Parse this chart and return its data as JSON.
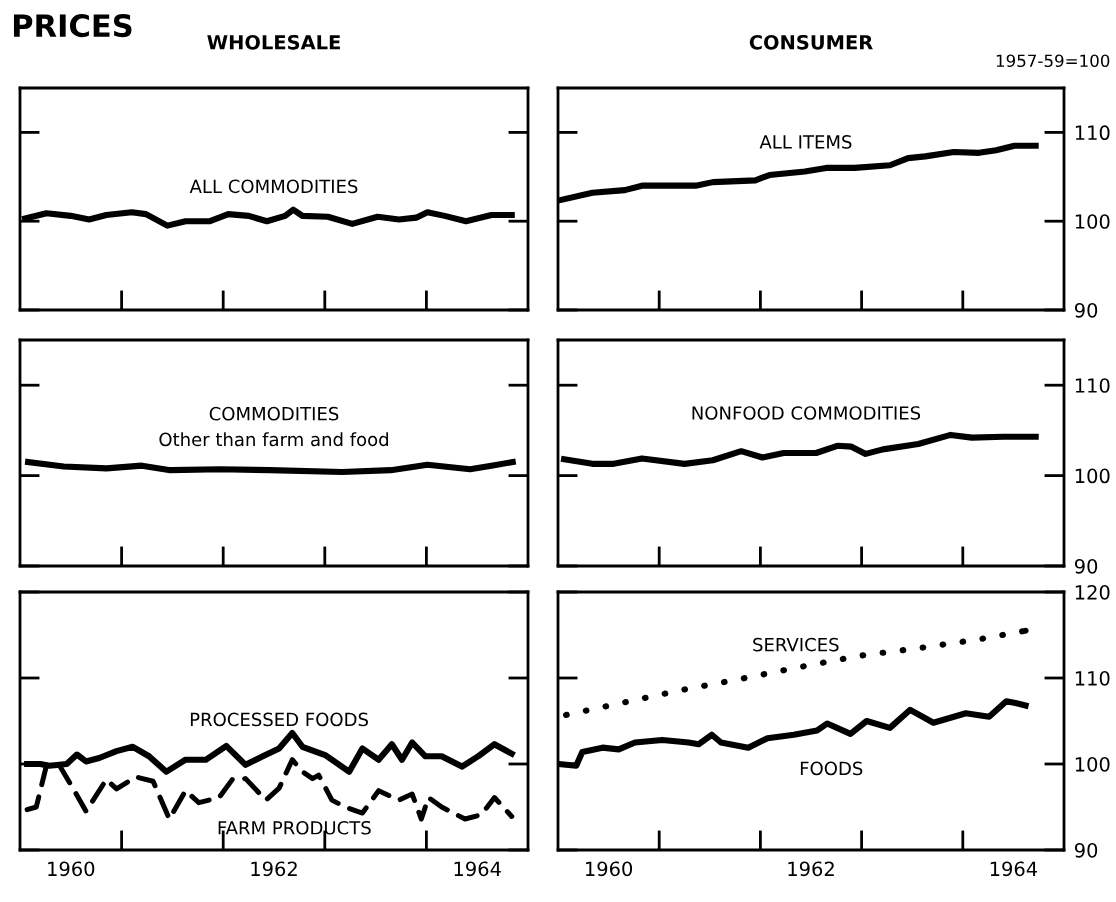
{
  "chart_data": [
    {
      "type": "line",
      "title": "WHOLESALE",
      "annotations": [
        "PRICES"
      ],
      "xlim": [
        1960,
        1965
      ],
      "ylim": [
        90,
        115
      ],
      "yticks": [
        90,
        100,
        110
      ],
      "tick_labels": false,
      "xticks": [
        {
          "value": 1961,
          "label": null
        },
        {
          "value": 1962,
          "label": null
        },
        {
          "value": 1963,
          "label": null
        },
        {
          "value": 1964,
          "label": null
        }
      ],
      "series": [
        {
          "name": "ALL COMMODITIES",
          "color": "#000000",
          "line_style": "solid",
          "x": [
            1960.05,
            1960.26,
            1960.5,
            1960.68,
            1960.85,
            1961.1,
            1961.24,
            1961.45,
            1961.63,
            1961.87,
            1962.05,
            1962.25,
            1962.43,
            1962.61,
            1962.69,
            1962.78,
            1963.03,
            1963.27,
            1963.52,
            1963.73,
            1963.9,
            1964.01,
            1964.18,
            1964.39,
            1964.64,
            1964.84
          ],
          "values": [
            100.3,
            100.9,
            100.6,
            100.2,
            100.7,
            101.0,
            100.8,
            99.5,
            100.0,
            100.0,
            100.8,
            100.6,
            100.0,
            100.6,
            101.3,
            100.6,
            100.5,
            99.7,
            100.5,
            100.2,
            100.4,
            101.0,
            100.6,
            100.0,
            100.7,
            100.7
          ]
        }
      ]
    },
    {
      "type": "line",
      "title": "CONSUMER",
      "annotations": [
        "1957-59=100"
      ],
      "xlim": [
        1960,
        1965
      ],
      "ylim": [
        90,
        115
      ],
      "yticks": [
        90,
        100,
        110
      ],
      "tick_labels": "y",
      "xticks": [
        {
          "value": 1961,
          "label": null
        },
        {
          "value": 1962,
          "label": null
        },
        {
          "value": 1963,
          "label": null
        },
        {
          "value": 1964,
          "label": null
        }
      ],
      "series": [
        {
          "name": "ALL ITEMS",
          "color": "#000000",
          "line_style": "solid",
          "x": [
            1960.03,
            1960.34,
            1960.66,
            1960.83,
            1961.36,
            1961.53,
            1961.95,
            1962.09,
            1962.44,
            1962.65,
            1962.93,
            1963.28,
            1963.46,
            1963.63,
            1963.91,
            1964.16,
            1964.33,
            1964.51,
            1964.72
          ],
          "values": [
            102.4,
            103.2,
            103.5,
            104.0,
            104.0,
            104.4,
            104.6,
            105.2,
            105.6,
            106.0,
            106.0,
            106.3,
            107.1,
            107.3,
            107.8,
            107.7,
            108.0,
            108.5,
            108.5
          ]
        }
      ]
    },
    {
      "type": "line",
      "xlim": [
        1960,
        1965
      ],
      "ylim": [
        90,
        115
      ],
      "yticks": [
        90,
        100,
        110
      ],
      "tick_labels": false,
      "xticks": [
        {
          "value": 1961,
          "label": null
        },
        {
          "value": 1962,
          "label": null
        },
        {
          "value": 1963,
          "label": null
        },
        {
          "value": 1964,
          "label": null
        }
      ],
      "series": [
        {
          "name": "COMMODITIES\nOther than farm and food",
          "color": "#000000",
          "line_style": "solid",
          "x": [
            1960.08,
            1960.43,
            1960.85,
            1961.2,
            1961.48,
            1961.97,
            1962.46,
            1963.17,
            1963.65,
            1964.01,
            1964.43,
            1964.64,
            1964.85
          ],
          "values": [
            101.5,
            101.0,
            100.8,
            101.1,
            100.6,
            100.7,
            100.6,
            100.4,
            100.6,
            101.2,
            100.7,
            101.1,
            101.5
          ]
        }
      ]
    },
    {
      "type": "line",
      "xlim": [
        1960,
        1965
      ],
      "ylim": [
        90,
        115
      ],
      "yticks": [
        90,
        100,
        110
      ],
      "tick_labels": "y",
      "xticks": [
        {
          "value": 1961,
          "label": null
        },
        {
          "value": 1962,
          "label": null
        },
        {
          "value": 1963,
          "label": null
        },
        {
          "value": 1964,
          "label": null
        }
      ],
      "series": [
        {
          "name": "NONFOOD COMMODITIES",
          "color": "#000000",
          "line_style": "solid",
          "x": [
            1960.06,
            1960.34,
            1960.55,
            1960.83,
            1961.25,
            1961.53,
            1961.81,
            1962.02,
            1962.23,
            1962.55,
            1962.76,
            1962.9,
            1963.04,
            1963.21,
            1963.56,
            1963.88,
            1964.09,
            1964.4,
            1964.72
          ],
          "values": [
            101.8,
            101.3,
            101.3,
            101.9,
            101.3,
            101.7,
            102.7,
            102.0,
            102.5,
            102.5,
            103.3,
            103.2,
            102.4,
            102.9,
            103.5,
            104.5,
            104.2,
            104.3,
            104.3
          ]
        }
      ]
    },
    {
      "type": "line",
      "xlim": [
        1960,
        1965
      ],
      "ylim": [
        90,
        120
      ],
      "yticks": [
        90,
        100,
        110,
        120
      ],
      "tick_labels": "x",
      "xticks": [
        {
          "value": 1960.5,
          "label": "1960"
        },
        {
          "value": 1961,
          "label": null
        },
        {
          "value": 1962,
          "label": null
        },
        {
          "value": 1962.5,
          "label": "1962"
        },
        {
          "value": 1963,
          "label": null
        },
        {
          "value": 1964,
          "label": null
        },
        {
          "value": 1964.5,
          "label": "1964"
        }
      ],
      "series": [
        {
          "name": "PROCESSED FOODS",
          "color": "#000000",
          "line_style": "solid",
          "x": [
            1960.07,
            1960.2,
            1960.29,
            1960.46,
            1960.56,
            1960.65,
            1960.78,
            1960.95,
            1961.11,
            1961.27,
            1961.44,
            1961.63,
            1961.83,
            1962.03,
            1962.22,
            1962.39,
            1962.55,
            1962.68,
            1962.78,
            1963.01,
            1963.24,
            1963.37,
            1963.53,
            1963.66,
            1963.76,
            1963.86,
            1963.99,
            1964.15,
            1964.35,
            1964.51,
            1964.67,
            1964.84
          ],
          "values": [
            100.0,
            100.0,
            99.8,
            100.0,
            101.1,
            100.3,
            100.7,
            101.5,
            102.0,
            100.9,
            99.1,
            100.5,
            100.5,
            102.1,
            99.9,
            100.9,
            101.8,
            103.6,
            102.0,
            101.0,
            99.1,
            101.8,
            100.5,
            102.3,
            100.5,
            102.5,
            100.9,
            100.9,
            99.7,
            100.9,
            102.3,
            101.2
          ]
        },
        {
          "name": "FARM PRODUCTS",
          "color": "#000000",
          "line_style": "dashed",
          "x": [
            1960.07,
            1960.16,
            1960.26,
            1960.39,
            1960.52,
            1960.65,
            1960.85,
            1960.95,
            1961.14,
            1961.31,
            1961.47,
            1961.63,
            1961.76,
            1961.96,
            1962.09,
            1962.22,
            1962.42,
            1962.55,
            1962.68,
            1962.78,
            1962.88,
            1962.94,
            1963.07,
            1963.2,
            1963.37,
            1963.53,
            1963.73,
            1963.86,
            1963.95,
            1964.02,
            1964.15,
            1964.38,
            1964.54,
            1964.67,
            1964.84
          ],
          "values": [
            94.7,
            95.0,
            99.8,
            99.8,
            97.2,
            94.5,
            98.2,
            97.1,
            98.5,
            98.0,
            93.6,
            96.9,
            95.5,
            96.1,
            98.2,
            98.3,
            95.8,
            97.2,
            100.5,
            99.1,
            98.3,
            98.7,
            95.8,
            95.0,
            94.3,
            96.9,
            95.8,
            96.5,
            93.6,
            96.1,
            95.0,
            93.6,
            94.1,
            96.1,
            93.9
          ]
        }
      ]
    },
    {
      "type": "line",
      "xlim": [
        1960,
        1965
      ],
      "ylim": [
        90,
        120
      ],
      "yticks": [
        90,
        100,
        110,
        120
      ],
      "xticks": [
        {
          "value": 1960.5,
          "label": "1960"
        },
        {
          "value": 1961,
          "label": null
        },
        {
          "value": 1962,
          "label": null
        },
        {
          "value": 1962.5,
          "label": "1962"
        },
        {
          "value": 1963,
          "label": null
        },
        {
          "value": 1964,
          "label": null
        },
        {
          "value": 1964.5,
          "label": "1964"
        }
      ],
      "series": [
        {
          "name": "SERVICES",
          "color": "#000000",
          "line_style": "dotted",
          "x": [
            1960.08,
            1960.63,
            1961.22,
            1961.81,
            1962.4,
            1962.99,
            1963.58,
            1964.16,
            1964.62
          ],
          "values": [
            105.7,
            107.1,
            108.6,
            109.9,
            111.3,
            112.6,
            113.5,
            114.5,
            115.5
          ]
        },
        {
          "name": "FOODS",
          "color": "#000000",
          "line_style": "solid",
          "x": [
            1960.01,
            1960.18,
            1960.24,
            1960.44,
            1960.6,
            1960.76,
            1961.03,
            1961.29,
            1961.39,
            1961.52,
            1961.61,
            1961.88,
            1962.07,
            1962.33,
            1962.56,
            1962.66,
            1962.89,
            1963.05,
            1963.28,
            1963.48,
            1963.71,
            1964.03,
            1964.26,
            1964.43,
            1964.52,
            1964.62
          ],
          "values": [
            100.0,
            99.8,
            101.4,
            101.9,
            101.7,
            102.5,
            102.8,
            102.5,
            102.3,
            103.4,
            102.5,
            101.9,
            103.0,
            103.4,
            103.9,
            104.7,
            103.5,
            105.0,
            104.2,
            106.3,
            104.8,
            105.9,
            105.5,
            107.3,
            107.1,
            106.8
          ]
        }
      ]
    }
  ]
}
